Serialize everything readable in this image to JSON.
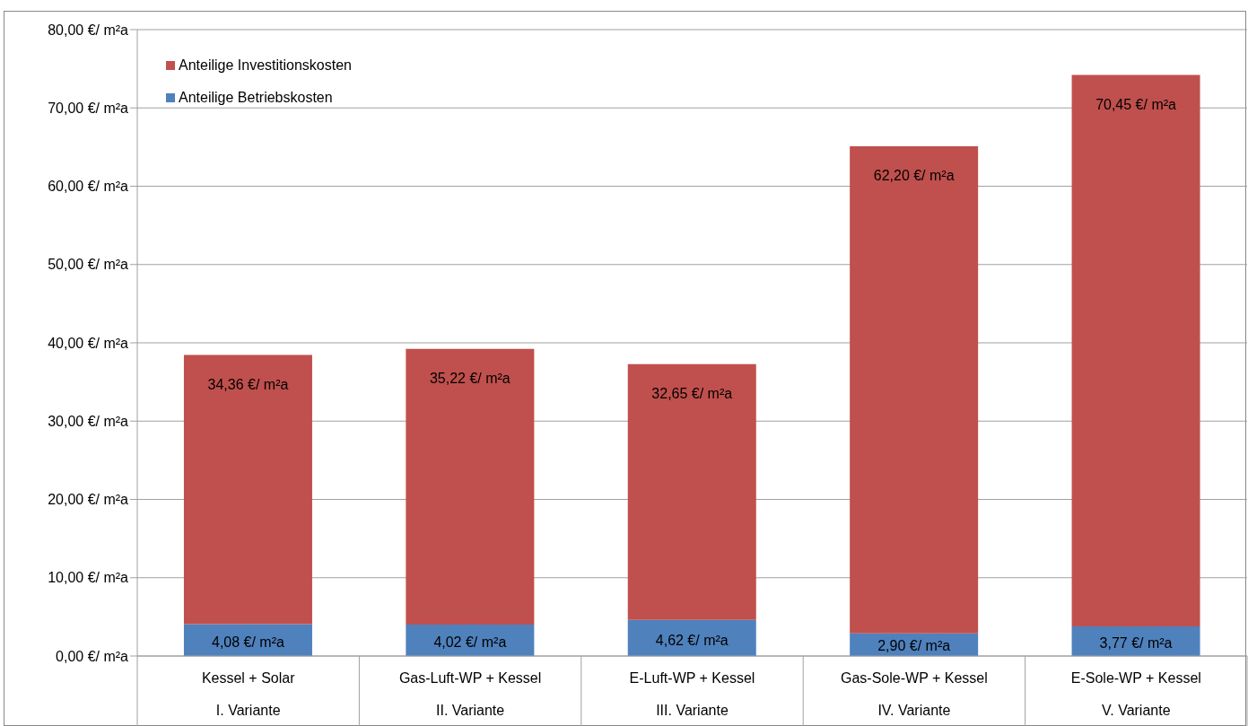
{
  "chart_data": {
    "type": "bar",
    "stacked": true,
    "categories": [
      "Kessel + Solar\nI. Variante",
      "Gas-Luft-WP + Kessel\nII. Variante",
      "E-Luft-WP + Kessel\nIII. Variante",
      "Gas-Sole-WP + Kessel\nIV. Variante",
      "E-Sole-WP + Kessel\nV. Variante"
    ],
    "series": [
      {
        "name": "Anteilige Betriebskosten",
        "color": "#4f81bd",
        "values": [
          4.08,
          4.02,
          4.62,
          2.9,
          3.77
        ],
        "value_labels": [
          "4,08 €/ m²a",
          "4,02 €/ m²a",
          "4,62 €/ m²a",
          "2,90 €/ m²a",
          "3,77 €/ m²a"
        ]
      },
      {
        "name": "Anteilige Investitionskosten",
        "color": "#c0504d",
        "values": [
          34.36,
          35.22,
          32.65,
          62.2,
          70.45
        ],
        "value_labels": [
          "34,36 €/ m²a",
          "35,22 €/ m²a",
          "32,65 €/ m²a",
          "62,20 €/ m²a",
          "70,45 €/ m²a"
        ]
      }
    ],
    "ylim": [
      0,
      80
    ],
    "yticks": [
      {
        "value": 0,
        "label": "0,00 €/ m²a"
      },
      {
        "value": 10,
        "label": "10,00 €/ m²a"
      },
      {
        "value": 20,
        "label": "20,00 €/ m²a"
      },
      {
        "value": 30,
        "label": "30,00 €/ m²a"
      },
      {
        "value": 40,
        "label": "40,00 €/ m²a"
      },
      {
        "value": 50,
        "label": "50,00 €/ m²a"
      },
      {
        "value": 60,
        "label": "60,00 €/ m²a"
      },
      {
        "value": 70,
        "label": "70,00 €/ m²a"
      },
      {
        "value": 80,
        "label": "80,00 €/ m²a"
      }
    ],
    "grid": "y",
    "legend": "top left"
  }
}
